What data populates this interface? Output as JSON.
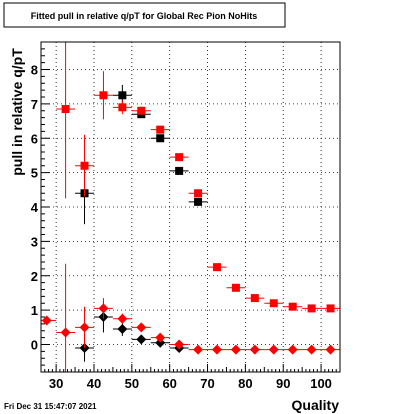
{
  "chart_data": {
    "type": "scatter",
    "title": "Fitted pull in relative q/pT for Global Rec Pion NoHits",
    "xlabel": "Quality",
    "ylabel": "pull in relative q/pT",
    "footer": "Fri Dec 31 15:47:07 2021",
    "xlim": [
      26,
      105
    ],
    "ylim": [
      -0.8,
      8.8
    ],
    "grid": true,
    "x_ticks": [
      30,
      40,
      50,
      60,
      70,
      80,
      90,
      100
    ],
    "y_ticks": [
      0,
      1,
      2,
      3,
      4,
      5,
      6,
      7,
      8
    ],
    "series": [
      {
        "marker": "square",
        "color": "#000000",
        "points": [
          {
            "x": 37.5,
            "y": 4.4,
            "yerr": 0.9
          },
          {
            "x": 47.5,
            "y": 7.25,
            "yerr": 0.3
          },
          {
            "x": 52.5,
            "y": 6.7,
            "yerr": 0.1
          },
          {
            "x": 57.5,
            "y": 6.0,
            "yerr": 0.05
          },
          {
            "x": 62.5,
            "y": 5.05,
            "yerr": 0.05
          },
          {
            "x": 67.5,
            "y": 4.15,
            "yerr": 0.05
          }
        ]
      },
      {
        "marker": "square",
        "color": "#ff0000",
        "points": [
          {
            "x": 32.5,
            "y": 6.85,
            "yerr": 2.6
          },
          {
            "x": 37.5,
            "y": 5.2,
            "yerr": 0.9
          },
          {
            "x": 42.5,
            "y": 7.25,
            "yerr": 0.7
          },
          {
            "x": 47.5,
            "y": 6.9,
            "yerr": 0.2
          },
          {
            "x": 52.5,
            "y": 6.8,
            "yerr": 0.1
          },
          {
            "x": 57.5,
            "y": 6.25,
            "yerr": 0.05
          },
          {
            "x": 62.5,
            "y": 5.45,
            "yerr": 0.05
          },
          {
            "x": 67.5,
            "y": 4.4,
            "yerr": 0.05
          },
          {
            "x": 72.5,
            "y": 2.25,
            "yerr": 0.03
          },
          {
            "x": 77.5,
            "y": 1.65,
            "yerr": 0.03
          },
          {
            "x": 82.5,
            "y": 1.35,
            "yerr": 0.03
          },
          {
            "x": 87.5,
            "y": 1.2,
            "yerr": 0.03
          },
          {
            "x": 92.5,
            "y": 1.1,
            "yerr": 0.03
          },
          {
            "x": 97.5,
            "y": 1.05,
            "yerr": 0.03
          },
          {
            "x": 102.5,
            "y": 1.05,
            "yerr": 0.03
          }
        ]
      },
      {
        "marker": "diamond",
        "color": "#000000",
        "points": [
          {
            "x": 37.5,
            "y": -0.1,
            "yerr": 0.4
          },
          {
            "x": 42.5,
            "y": 0.8,
            "yerr": 0.45
          },
          {
            "x": 47.5,
            "y": 0.45,
            "yerr": 0.2
          },
          {
            "x": 52.5,
            "y": 0.15,
            "yerr": 0.05
          },
          {
            "x": 57.5,
            "y": 0.05,
            "yerr": 0.03
          },
          {
            "x": 62.5,
            "y": -0.1,
            "yerr": 0.03
          }
        ]
      },
      {
        "marker": "diamond",
        "color": "#ff0000",
        "points": [
          {
            "x": 27.5,
            "y": 0.7,
            "yerr": 0.0
          },
          {
            "x": 32.5,
            "y": 0.35,
            "yerr": 2.0
          },
          {
            "x": 37.5,
            "y": 0.5,
            "yerr": 0.6
          },
          {
            "x": 42.5,
            "y": 1.05,
            "yerr": 0.3
          },
          {
            "x": 47.5,
            "y": 0.75,
            "yerr": 0.15
          },
          {
            "x": 52.5,
            "y": 0.5,
            "yerr": 0.05
          },
          {
            "x": 57.5,
            "y": 0.2,
            "yerr": 0.03
          },
          {
            "x": 62.5,
            "y": 0.0,
            "yerr": 0.03
          },
          {
            "x": 67.5,
            "y": -0.15,
            "yerr": 0.03
          },
          {
            "x": 72.5,
            "y": -0.15,
            "yerr": 0.03
          },
          {
            "x": 77.5,
            "y": -0.15,
            "yerr": 0.03
          },
          {
            "x": 82.5,
            "y": -0.15,
            "yerr": 0.03
          },
          {
            "x": 87.5,
            "y": -0.15,
            "yerr": 0.03
          },
          {
            "x": 92.5,
            "y": -0.15,
            "yerr": 0.03
          },
          {
            "x": 97.5,
            "y": -0.15,
            "yerr": 0.03
          },
          {
            "x": 102.5,
            "y": -0.15,
            "yerr": 0.03
          }
        ]
      }
    ]
  }
}
